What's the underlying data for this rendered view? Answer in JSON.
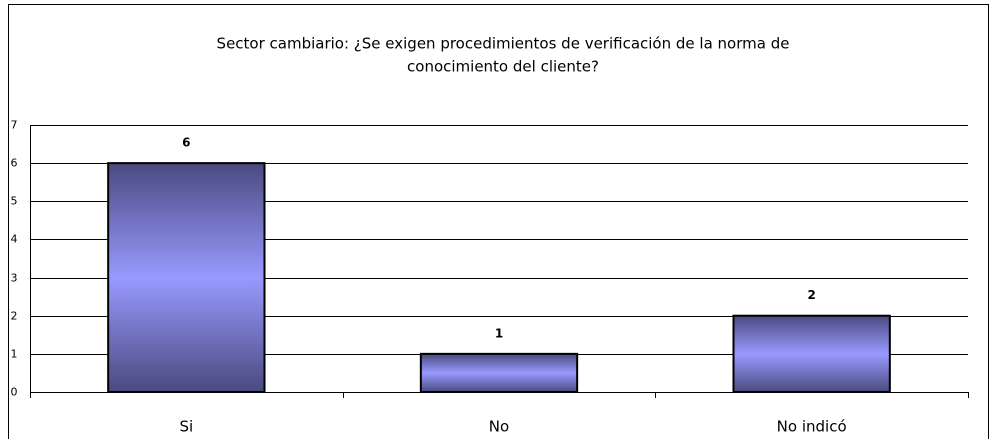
{
  "chart_data": {
    "type": "bar",
    "title": [
      "Sector cambiario: ¿Se exigen procedimientos de verificación de la norma de",
      "conocimiento del cliente?"
    ],
    "categories": [
      "Si",
      "No",
      "No indicó"
    ],
    "values": [
      6,
      1,
      2
    ],
    "color": "#9999ff",
    "ylim": [
      0,
      7
    ],
    "yticks": [
      0,
      1,
      2,
      3,
      4,
      5,
      6,
      7
    ],
    "grid": true
  }
}
